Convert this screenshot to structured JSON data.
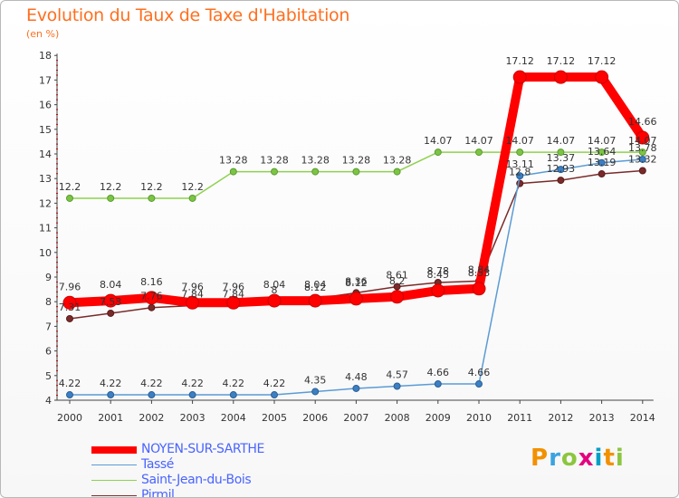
{
  "title": "Evolution du Taux de Taxe d'Habitation",
  "subtitle": "(en %)",
  "logo": [
    "P",
    "r",
    "o",
    "x",
    "i",
    "t",
    "i"
  ],
  "chart_data": {
    "type": "line",
    "x": [
      "2000",
      "2001",
      "2002",
      "2003",
      "2004",
      "2005",
      "2006",
      "2007",
      "2008",
      "2009",
      "2010",
      "2011",
      "2012",
      "2013",
      "2014"
    ],
    "ylim": [
      4,
      18
    ],
    "yticks": [
      4,
      5,
      6,
      7,
      8,
      9,
      10,
      11,
      12,
      13,
      14,
      15,
      16,
      17,
      18
    ],
    "grid": false,
    "legend_position": "bottom-left",
    "series": [
      {
        "name": "NOYEN-SUR-SARTHE",
        "color": "#ff0000",
        "values": [
          7.96,
          8.04,
          8.16,
          7.96,
          7.96,
          8.04,
          8.04,
          8.12,
          8.2,
          8.45,
          8.53,
          17.12,
          17.12,
          17.12,
          14.66
        ],
        "labels": [
          "7.96",
          "8.04",
          "8.16",
          "7.96",
          "7.96",
          "8.04",
          "8.04",
          "8.12",
          "8.2",
          "8.45",
          "8.53",
          "17.12",
          "17.12",
          "17.12",
          "14.66"
        ]
      },
      {
        "name": "Tassé",
        "color": "#5b9bd5",
        "values": [
          4.22,
          4.22,
          4.22,
          4.22,
          4.22,
          4.22,
          4.35,
          4.48,
          4.57,
          4.66,
          4.66,
          13.11,
          13.37,
          13.64,
          13.78
        ],
        "labels": [
          "4.22",
          "4.22",
          "4.22",
          "4.22",
          "4.22",
          "4.22",
          "4.35",
          "4.48",
          "4.57",
          "4.66",
          "4.66",
          "13.11",
          "13.37",
          "13.64",
          "13.78"
        ]
      },
      {
        "name": "Saint-Jean-du-Bois",
        "color": "#8ed14f",
        "values": [
          12.2,
          12.2,
          12.2,
          12.2,
          13.28,
          13.28,
          13.28,
          13.28,
          13.28,
          14.07,
          14.07,
          14.07,
          14.07,
          14.07,
          14.07
        ],
        "labels": [
          "12.2",
          "12.2",
          "12.2",
          "12.2",
          "13.28",
          "13.28",
          "13.28",
          "13.28",
          "13.28",
          "14.07",
          "14.07",
          "14.07",
          "14.07",
          "14.07",
          "14.07"
        ]
      },
      {
        "name": "Pirmil",
        "color": "#7a2a2a",
        "values": [
          7.31,
          7.53,
          7.76,
          7.84,
          7.84,
          8.0,
          8.12,
          8.36,
          8.61,
          8.78,
          8.84,
          12.8,
          12.93,
          13.19,
          13.32
        ],
        "labels": [
          "7.31",
          "7.53",
          "7.76",
          "7.84",
          "7.84",
          "8",
          "8.12",
          "8.36",
          "8.61",
          "8.78",
          "8.84",
          "12.8",
          "12.93",
          "13.19",
          "13.32"
        ]
      }
    ]
  }
}
